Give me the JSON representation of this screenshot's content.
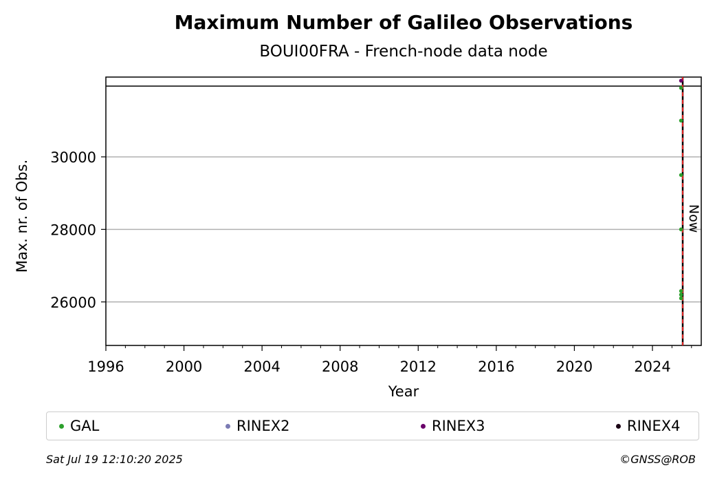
{
  "chart_data": {
    "type": "scatter",
    "title": "Maximum Number of Galileo Observations",
    "subtitle": "BOUI00FRA - French-node data node",
    "xlabel": "Year",
    "ylabel": "Max. nr. of Obs.",
    "xlim": [
      1996,
      2026.5
    ],
    "ylim": [
      24800,
      32200
    ],
    "xticks": [
      1996,
      2000,
      2004,
      2008,
      2012,
      2016,
      2020,
      2024
    ],
    "yticks": [
      26000,
      28000,
      30000
    ],
    "grid": "horizontal",
    "upper_limit_line": 31950,
    "now_x": 2025.55,
    "now_label": "Now",
    "series": [
      {
        "name": "GAL",
        "color": "#2ca02c",
        "x": [
          2025.5,
          2025.5,
          2025.5,
          2025.5,
          2025.5,
          2025.5,
          2025.5
        ],
        "y": [
          26300,
          26100,
          26200,
          28000,
          29500,
          31000,
          31900
        ]
      },
      {
        "name": "RINEX2",
        "color": "#7b7bb4",
        "x": [],
        "y": []
      },
      {
        "name": "RINEX3",
        "color": "#6a006a",
        "x": [
          2025.5
        ],
        "y": [
          32100
        ]
      },
      {
        "name": "RINEX4",
        "color": "#1a0014",
        "x": [],
        "y": []
      }
    ],
    "legend_position": "bottom"
  },
  "footer": {
    "timestamp": "Sat Jul 19 12:10:20 2025",
    "copyright": "©GNSS@ROB"
  }
}
